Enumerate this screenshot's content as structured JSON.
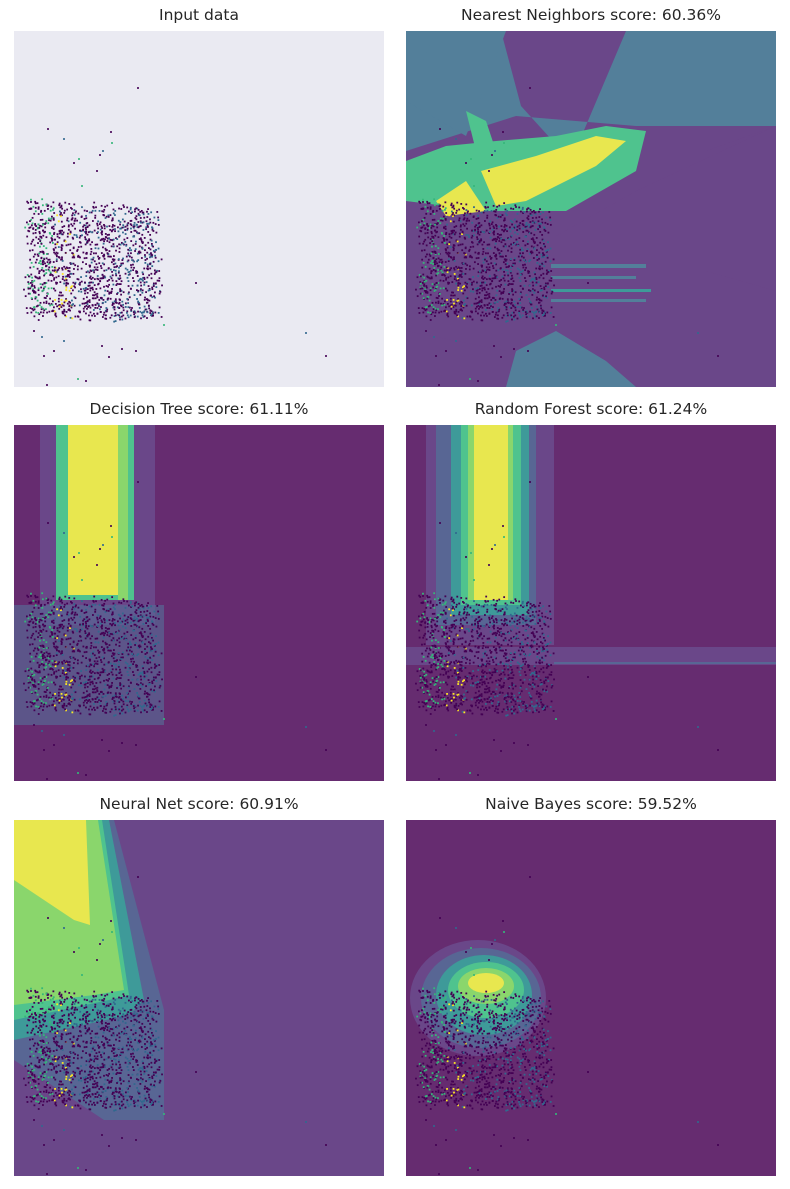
{
  "figure": {
    "colors": {
      "facecolor": "#eaeaf2",
      "purple": "#662c70",
      "violet": "#6a4789",
      "slate": "#586694",
      "steel": "#537f9a",
      "teal": "#3e9a99",
      "green": "#4fc38e",
      "lightgreen": "#8ad66c",
      "yellow": "#e8e74f"
    }
  },
  "chart_data": [
    {
      "type": "scatter",
      "title": "Input data",
      "background": "plain",
      "decision_regions": "none",
      "axes_visible": false,
      "point_classes": 4,
      "note_points": "dense cluster of samples roughly spanning x 0.03–0.40, y 0.24–0.90 of the axis range plus sparse outliers"
    },
    {
      "type": "scatter",
      "title": "Nearest Neighbors score: 60.36%",
      "score_percent": 60.36,
      "decision_regions": "knn",
      "axes_visible": false
    },
    {
      "type": "scatter",
      "title": "Decision Tree score: 61.11%",
      "score_percent": 61.11,
      "decision_regions": "tree",
      "axes_visible": false
    },
    {
      "type": "scatter",
      "title": "Random Forest score: 61.24%",
      "score_percent": 61.24,
      "decision_regions": "forest",
      "axes_visible": false
    },
    {
      "type": "scatter",
      "title": "Neural Net score: 60.91%",
      "score_percent": 60.91,
      "decision_regions": "neural",
      "axes_visible": false
    },
    {
      "type": "scatter",
      "title": "Naive Bayes score: 59.52%",
      "score_percent": 59.52,
      "decision_regions": "bayes",
      "axes_visible": false
    }
  ]
}
